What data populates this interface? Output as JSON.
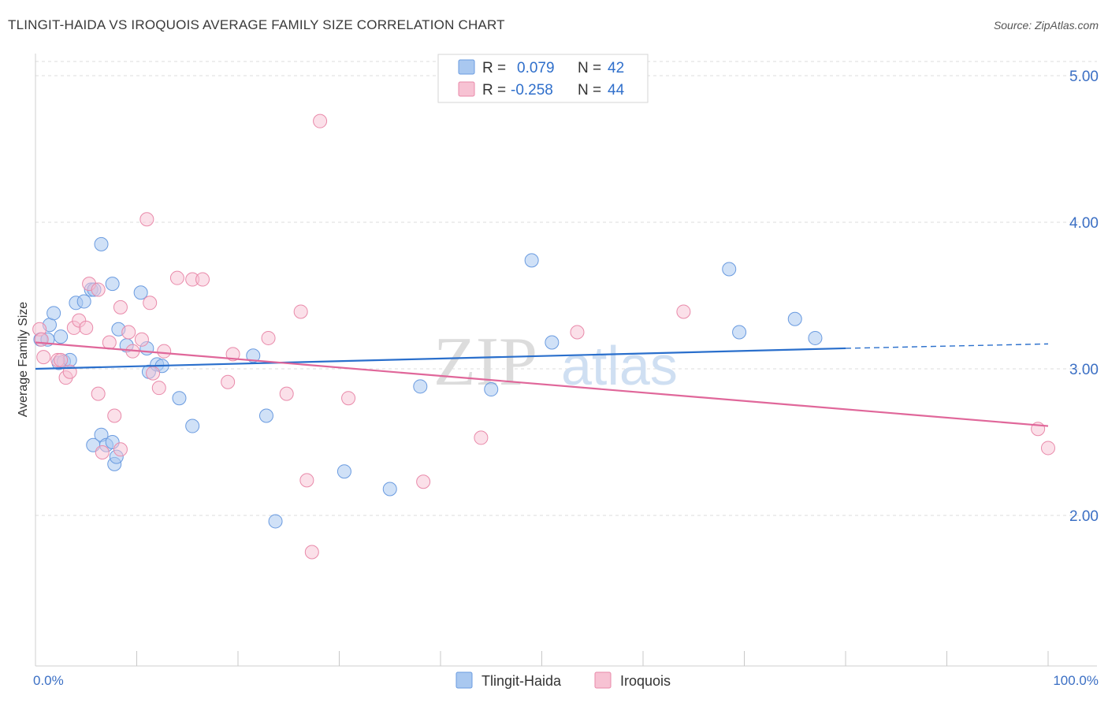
{
  "title": "TLINGIT-HAIDA VS IROQUOIS AVERAGE FAMILY SIZE CORRELATION CHART",
  "source": "Source: ZipAtlas.com",
  "watermark": {
    "zip": "ZIP",
    "atlas": "atlas"
  },
  "legend": {
    "rows": [
      {
        "r_label": "R =",
        "r_value": "0.079",
        "n_label": "N =",
        "n_value": "42"
      },
      {
        "r_label": "R =",
        "r_value": "-0.258",
        "n_label": "N =",
        "n_value": "44"
      }
    ]
  },
  "bottom_legend": [
    "Tlingit-Haida",
    "Iroquois"
  ],
  "colors": {
    "tlingit_fill": "#a9c8f0",
    "tlingit_stroke": "#6a9be0",
    "tlingit_line": "#2a6fcc",
    "iroquois_fill": "#f7c2d3",
    "iroquois_stroke": "#e98aaa",
    "iroquois_line": "#e0679a",
    "tick_text": "#3b6fc4"
  },
  "chart_data": {
    "type": "scatter",
    "xlabel": "",
    "ylabel": "Average Family Size",
    "xlim": [
      0,
      100
    ],
    "ylim": [
      1.0,
      5.1
    ],
    "x_tick_labels": [
      "0.0%",
      "100.0%"
    ],
    "y_ticks": [
      2.0,
      3.0,
      4.0,
      5.0
    ],
    "y_tick_labels": [
      "2.00",
      "3.00",
      "4.00",
      "5.00"
    ],
    "series": [
      {
        "name": "Tlingit-Haida",
        "points": [
          [
            0.5,
            3.2
          ],
          [
            1.2,
            3.2
          ],
          [
            1.4,
            3.3
          ],
          [
            1.8,
            3.38
          ],
          [
            2.3,
            3.04
          ],
          [
            2.5,
            3.22
          ],
          [
            2.8,
            3.05
          ],
          [
            3.4,
            3.06
          ],
          [
            4.0,
            3.45
          ],
          [
            4.8,
            3.46
          ],
          [
            5.5,
            3.54
          ],
          [
            5.7,
            2.48
          ],
          [
            5.8,
            3.54
          ],
          [
            6.5,
            3.85
          ],
          [
            6.5,
            2.55
          ],
          [
            7.0,
            2.48
          ],
          [
            7.6,
            3.58
          ],
          [
            7.6,
            2.5
          ],
          [
            7.8,
            2.35
          ],
          [
            8.0,
            2.4
          ],
          [
            8.2,
            3.27
          ],
          [
            9.0,
            3.16
          ],
          [
            10.4,
            3.52
          ],
          [
            11.0,
            3.14
          ],
          [
            11.2,
            2.98
          ],
          [
            12.0,
            3.03
          ],
          [
            12.5,
            3.02
          ],
          [
            14.2,
            2.8
          ],
          [
            15.5,
            2.61
          ],
          [
            21.5,
            3.09
          ],
          [
            22.8,
            2.68
          ],
          [
            23.7,
            1.96
          ],
          [
            30.5,
            2.3
          ],
          [
            35.0,
            2.18
          ],
          [
            38.0,
            2.88
          ],
          [
            45.0,
            2.86
          ],
          [
            49.0,
            3.74
          ],
          [
            51.0,
            3.18
          ],
          [
            68.5,
            3.68
          ],
          [
            69.5,
            3.25
          ],
          [
            75.0,
            3.34
          ],
          [
            77.0,
            3.21
          ]
        ],
        "trend": {
          "x": [
            0,
            80
          ],
          "y": [
            3.0,
            3.14
          ],
          "dashed_extension": {
            "x": [
              80,
              100
            ],
            "y": [
              3.14,
              3.17
            ]
          }
        }
      },
      {
        "name": "Iroquois",
        "points": [
          [
            0.4,
            3.27
          ],
          [
            0.6,
            3.2
          ],
          [
            0.8,
            3.08
          ],
          [
            2.2,
            3.06
          ],
          [
            2.5,
            3.06
          ],
          [
            3.0,
            2.94
          ],
          [
            3.4,
            2.98
          ],
          [
            3.8,
            3.28
          ],
          [
            4.3,
            3.33
          ],
          [
            5.0,
            3.28
          ],
          [
            5.3,
            3.58
          ],
          [
            6.2,
            3.54
          ],
          [
            6.2,
            2.83
          ],
          [
            7.3,
            3.18
          ],
          [
            7.8,
            2.68
          ],
          [
            6.6,
            2.43
          ],
          [
            8.4,
            3.42
          ],
          [
            8.4,
            2.45
          ],
          [
            9.2,
            3.25
          ],
          [
            9.6,
            3.12
          ],
          [
            10.5,
            3.2
          ],
          [
            11.0,
            4.02
          ],
          [
            11.3,
            3.45
          ],
          [
            11.6,
            2.97
          ],
          [
            12.2,
            2.87
          ],
          [
            12.7,
            3.12
          ],
          [
            14.0,
            3.62
          ],
          [
            15.5,
            3.61
          ],
          [
            16.5,
            3.61
          ],
          [
            19.0,
            2.91
          ],
          [
            19.5,
            3.1
          ],
          [
            23.0,
            3.21
          ],
          [
            24.8,
            2.83
          ],
          [
            26.2,
            3.39
          ],
          [
            26.8,
            2.24
          ],
          [
            27.3,
            1.75
          ],
          [
            28.1,
            4.69
          ],
          [
            30.9,
            2.8
          ],
          [
            38.3,
            2.23
          ],
          [
            44.0,
            2.53
          ],
          [
            53.5,
            3.25
          ],
          [
            64.0,
            3.39
          ],
          [
            99.0,
            2.59
          ],
          [
            100.0,
            2.46
          ]
        ],
        "trend": {
          "x": [
            0,
            100
          ],
          "y": [
            3.18,
            2.61
          ]
        }
      }
    ]
  }
}
